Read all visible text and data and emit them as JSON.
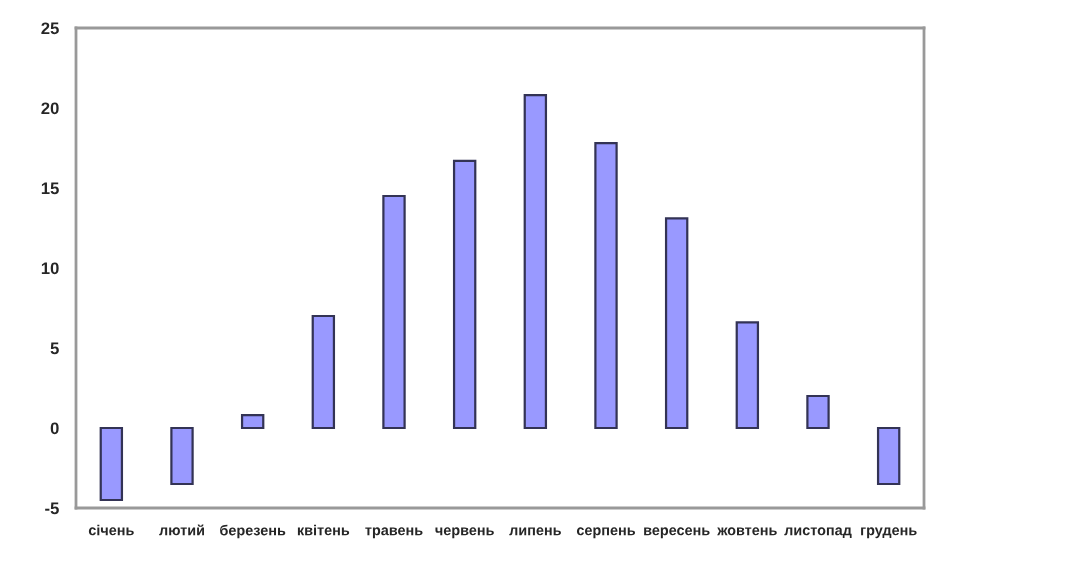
{
  "chart_data": {
    "type": "bar",
    "categories": [
      "січень",
      "лютий",
      "березень",
      "квітень",
      "травень",
      "червень",
      "липень",
      "серпень",
      "вересень",
      "жовтень",
      "листопад",
      "грудень"
    ],
    "values": [
      -4.5,
      -3.5,
      0.8,
      7.0,
      14.5,
      16.7,
      20.8,
      17.8,
      13.1,
      6.6,
      2.0,
      -3.5
    ],
    "color": "#9999ff",
    "ylim": [
      -5,
      25
    ],
    "yticks": [
      -5,
      0,
      5,
      10,
      15,
      20,
      25
    ],
    "grid": false,
    "legend": false
  }
}
